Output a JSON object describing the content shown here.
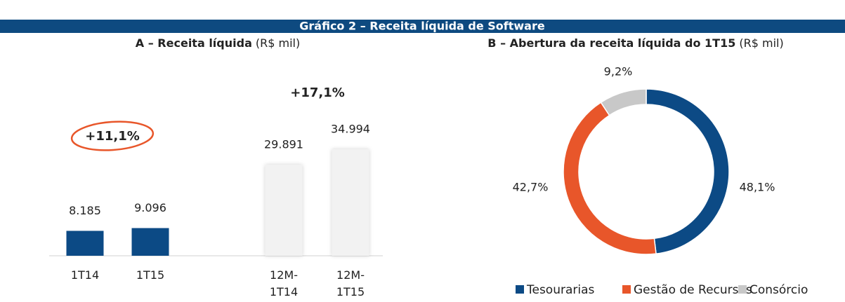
{
  "header": {
    "title": "Gráfico 2 – Receita líquida de Software"
  },
  "chart_data": [
    {
      "type": "bar",
      "title": "A – Receita líquida",
      "unit": "(R$ mil)",
      "categories": [
        "1T14",
        "1T15",
        "12M-1T14",
        "12M-1T15"
      ],
      "values": [
        8185,
        9096,
        29891,
        34994
      ],
      "value_labels": [
        "8.185",
        "9.096",
        "29.891",
        "34.994"
      ],
      "colors": [
        "#0c4a85",
        "#0c4a85",
        "#f2f2f2",
        "#f2f2f2"
      ],
      "ylim": [
        0,
        38000
      ],
      "annotations": [
        {
          "text": "+11,1%"
        },
        {
          "text": "+17,1%"
        }
      ]
    },
    {
      "type": "pie",
      "title": "B – Abertura da receita líquida do 1T15",
      "unit": "(R$ mil)",
      "categories": [
        "Tesourarias",
        "Gestão de Recursos",
        "Consórcio"
      ],
      "values": [
        48.1,
        42.7,
        9.2
      ],
      "value_labels": [
        "48,1%",
        "42,7%",
        "9,2%"
      ],
      "colors": [
        "#0c4a85",
        "#e8562a",
        "#c8c8c8"
      ]
    }
  ]
}
